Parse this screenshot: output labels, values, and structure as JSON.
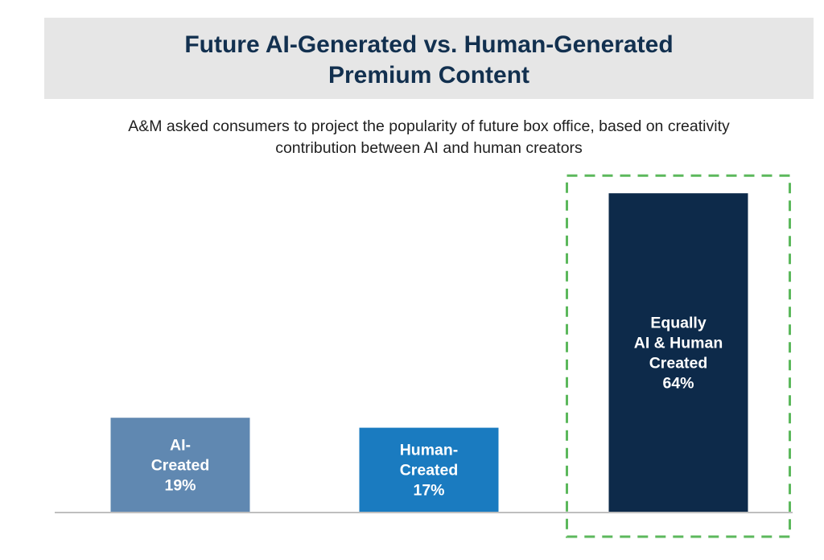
{
  "header": {
    "title_line1": "Future AI-Generated vs. Human-Generated",
    "title_line2": "Premium Content",
    "subtitle_line1": "A&M asked consumers to project the popularity of future box office, based on creativity",
    "subtitle_line2": "contribution between AI and human creators"
  },
  "chart_data": {
    "type": "bar",
    "title": "Future AI-Generated vs. Human-Generated Premium Content",
    "categories": [
      "AI-Created",
      "Human-Created",
      "Equally AI & Human Created"
    ],
    "values": [
      19,
      17,
      64
    ],
    "unit": "%",
    "bar_labels": [
      [
        "AI-",
        "Created",
        "19%"
      ],
      [
        "Human-",
        "Created",
        "17%"
      ],
      [
        "Equally",
        "AI & Human",
        "Created",
        "64%"
      ]
    ],
    "colors": [
      "#6088b1",
      "#1a7bc0",
      "#0d2a4a"
    ],
    "highlight": "Equally AI & Human Created",
    "highlight_color": "#5cb85c",
    "ylim": [
      0,
      100
    ],
    "grid": false
  }
}
